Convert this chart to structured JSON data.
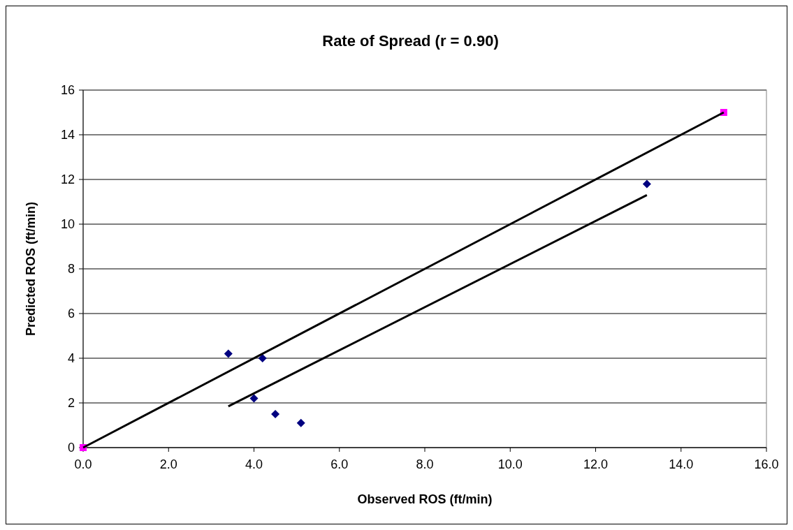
{
  "chart_data": {
    "type": "scatter",
    "title": "Rate of Spread (r = 0.90)",
    "xlabel": "Observed ROS (ft/min)",
    "ylabel": "Predicted ROS (ft/min)",
    "xlim": [
      0,
      16
    ],
    "xticks": [
      {
        "value": 0,
        "label": "0.0"
      },
      {
        "value": 2,
        "label": "2.0"
      },
      {
        "value": 4,
        "label": "4.0"
      },
      {
        "value": 6,
        "label": "6.0"
      },
      {
        "value": 8,
        "label": "8.0"
      },
      {
        "value": 10,
        "label": "10.0"
      },
      {
        "value": 12,
        "label": "12.0"
      },
      {
        "value": 14,
        "label": "14.0"
      },
      {
        "value": 16,
        "label": "16.0"
      }
    ],
    "ylim": [
      0,
      16
    ],
    "yticks": [
      0,
      2,
      4,
      6,
      8,
      10,
      12,
      14,
      16
    ],
    "grid": "y",
    "series": [
      {
        "type": "line",
        "color": "#000000",
        "x": [
          0,
          15
        ],
        "values": [
          0,
          15
        ],
        "marker": "none"
      },
      {
        "type": "line",
        "color": "#000000",
        "x": [
          3.4,
          13.2
        ],
        "values": [
          1.85,
          11.3
        ],
        "marker": "none"
      },
      {
        "color": "#000080",
        "x": [
          3.4,
          4.2,
          4.0,
          4.5,
          5.1,
          13.2
        ],
        "values": [
          4.2,
          4.0,
          2.2,
          1.5,
          1.1,
          11.8
        ],
        "marker": "diamond"
      },
      {
        "color": "#ff00ff",
        "x": [
          0,
          15
        ],
        "values": [
          0,
          15
        ],
        "marker": "square"
      }
    ]
  }
}
